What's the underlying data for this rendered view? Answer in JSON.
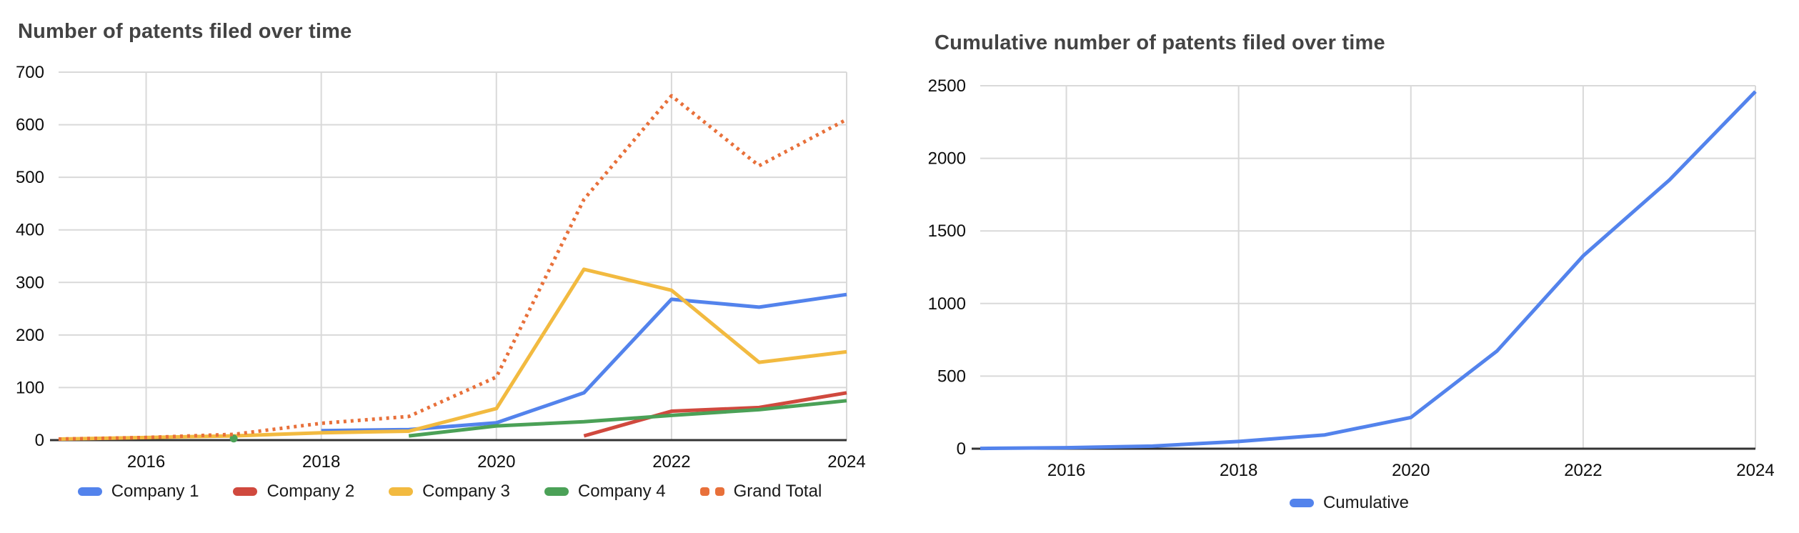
{
  "charts_meta": {
    "left_title": "Number of patents filed over time",
    "right_title": "Cumulative number of patents filed over time",
    "grid_color": "#d9d9d9",
    "axis_color": "#333333",
    "title_color": "#434343"
  },
  "chart_data": [
    {
      "type": "line",
      "title": "Number of patents filed over time",
      "xlabel": "",
      "ylabel": "",
      "x": [
        2015,
        2016,
        2017,
        2018,
        2019,
        2020,
        2021,
        2022,
        2023,
        2024
      ],
      "xticks": [
        2016,
        2018,
        2020,
        2022,
        2024
      ],
      "ylim": [
        0,
        700
      ],
      "yticks": [
        0,
        100,
        200,
        300,
        400,
        500,
        600,
        700
      ],
      "grid": true,
      "legend_position": "bottom",
      "series": [
        {
          "name": "Company 1",
          "color": "#5383EC",
          "style": "solid",
          "values": [
            null,
            null,
            null,
            18,
            20,
            33,
            90,
            268,
            253,
            277
          ]
        },
        {
          "name": "Company 2",
          "color": "#D0493E",
          "style": "solid",
          "values": [
            null,
            null,
            null,
            null,
            null,
            null,
            8,
            55,
            62,
            90
          ]
        },
        {
          "name": "Company 3",
          "color": "#F2BA40",
          "style": "solid",
          "values": [
            2,
            5,
            8,
            14,
            17,
            60,
            325,
            285,
            148,
            168
          ]
        },
        {
          "name": "Company 4",
          "color": "#4BA157",
          "style": "solid",
          "values": [
            null,
            null,
            3,
            null,
            8,
            27,
            35,
            47,
            58,
            75
          ]
        },
        {
          "name": "Grand Total",
          "color": "#E8703A",
          "style": "dotted",
          "values": [
            2,
            5,
            11,
            32,
            45,
            120,
            458,
            655,
            522,
            610
          ]
        }
      ]
    },
    {
      "type": "line",
      "title": "Cumulative number of patents filed over time",
      "xlabel": "",
      "ylabel": "",
      "x": [
        2015,
        2016,
        2017,
        2018,
        2019,
        2020,
        2021,
        2022,
        2023,
        2024
      ],
      "xticks": [
        2016,
        2018,
        2020,
        2022,
        2024
      ],
      "ylim": [
        0,
        2500
      ],
      "yticks": [
        0,
        500,
        1000,
        1500,
        2000,
        2500
      ],
      "grid": true,
      "legend_position": "bottom",
      "series": [
        {
          "name": "Cumulative",
          "color": "#5383EC",
          "style": "solid",
          "values": [
            2,
            7,
            18,
            50,
            95,
            215,
            673,
            1328,
            1850,
            2460
          ]
        }
      ]
    }
  ]
}
